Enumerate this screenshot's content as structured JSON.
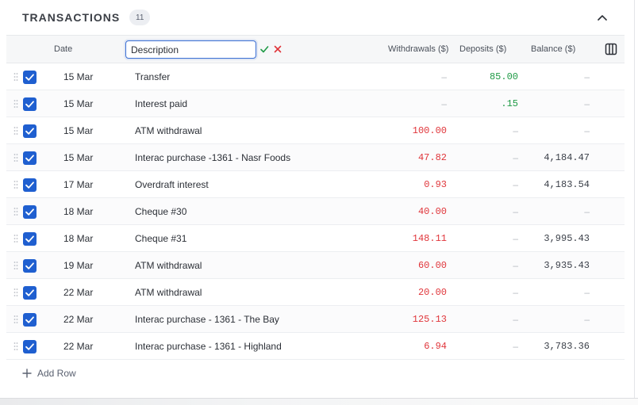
{
  "section": {
    "title": "TRANSACTIONS",
    "count": "11"
  },
  "columns": {
    "date": "Date",
    "withdrawals": "Withdrawals ($)",
    "deposits": "Deposits ($)",
    "balance": "Balance ($)"
  },
  "edit": {
    "description_value": "Description"
  },
  "rows": [
    {
      "date": "15 Mar",
      "description": "Transfer",
      "withdrawal": "–",
      "deposit": "85.00",
      "balance": "–"
    },
    {
      "date": "15 Mar",
      "description": "Interest paid",
      "withdrawal": "–",
      "deposit": ".15",
      "balance": "–"
    },
    {
      "date": "15 Mar",
      "description": "ATM withdrawal",
      "withdrawal": "100.00",
      "deposit": "–",
      "balance": "–"
    },
    {
      "date": "15 Mar",
      "description": "Interac purchase -1361 - Nasr Foods",
      "withdrawal": "47.82",
      "deposit": "–",
      "balance": "4,184.47"
    },
    {
      "date": "17 Mar",
      "description": "Overdraft interest",
      "withdrawal": "0.93",
      "deposit": "–",
      "balance": "4,183.54"
    },
    {
      "date": "18 Mar",
      "description": "Cheque #30",
      "withdrawal": "40.00",
      "deposit": "–",
      "balance": "–"
    },
    {
      "date": "18 Mar",
      "description": "Cheque #31",
      "withdrawal": "148.11",
      "deposit": "–",
      "balance": "3,995.43"
    },
    {
      "date": "19 Mar",
      "description": "ATM withdrawal",
      "withdrawal": "60.00",
      "deposit": "–",
      "balance": "3,935.43"
    },
    {
      "date": "22 Mar",
      "description": "ATM withdrawal",
      "withdrawal": "20.00",
      "deposit": "–",
      "balance": "–"
    },
    {
      "date": "22 Mar",
      "description": "Interac purchase - 1361 - The Bay",
      "withdrawal": "125.13",
      "deposit": "–",
      "balance": "–"
    },
    {
      "date": "22 Mar",
      "description": "Interac purchase - 1361 - Highland",
      "withdrawal": "6.94",
      "deposit": "–",
      "balance": "3,783.36"
    }
  ],
  "add_row": {
    "label": "Add Row"
  },
  "icons": {
    "collapse": "chevron-up-icon",
    "confirm": "check-icon",
    "cancel": "close-icon",
    "columns": "columns-icon",
    "drag": "drag-handle-icon",
    "add": "plus-icon"
  },
  "colors": {
    "accent": "#1f5fd0",
    "withdrawal": "#e0353a",
    "deposit": "#1e9a45",
    "confirm": "#1e9a45",
    "cancel": "#e0353a"
  }
}
